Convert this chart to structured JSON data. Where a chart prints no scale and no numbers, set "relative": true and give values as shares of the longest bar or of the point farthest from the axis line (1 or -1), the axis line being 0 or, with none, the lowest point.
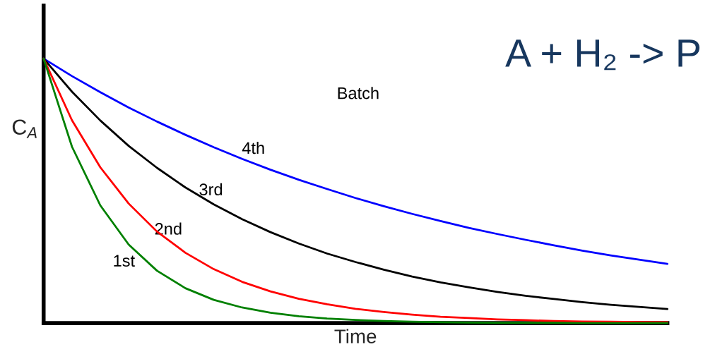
{
  "chart_data": {
    "type": "line",
    "relative": true,
    "xlabel": "Time",
    "ylabel": "C$_{A}$",
    "annotations": [
      "Batch",
      "A + H₂ -> P"
    ],
    "categories": [
      null,
      null,
      null,
      null,
      null,
      null,
      null,
      null,
      null,
      null,
      null,
      null,
      null,
      null,
      null,
      null,
      null,
      null,
      null,
      null,
      null,
      null,
      null
    ],
    "series": [
      {
        "name": "4th",
        "color": "#0000ff",
        "values": [
          1,
          0.934,
          0.873,
          0.815,
          0.762,
          0.712,
          0.665,
          0.621,
          0.58,
          0.542,
          0.507,
          0.473,
          0.442,
          0.413,
          0.386,
          0.36,
          0.337,
          0.315,
          0.294,
          0.274,
          0.256,
          0.24,
          0.224
        ]
      },
      {
        "name": "3rd",
        "color": "#000000",
        "values": [
          1,
          0.875,
          0.766,
          0.67,
          0.587,
          0.513,
          0.449,
          0.393,
          0.344,
          0.301,
          0.263,
          0.231,
          0.202,
          0.176,
          0.154,
          0.135,
          0.118,
          0.103,
          0.091,
          0.079,
          0.069,
          0.061,
          0.053
        ]
      },
      {
        "name": "2nd",
        "color": "#ff0000",
        "values": [
          1,
          0.767,
          0.589,
          0.452,
          0.346,
          0.266,
          0.204,
          0.156,
          0.12,
          0.092,
          0.071,
          0.054,
          0.042,
          0.032,
          0.024,
          0.019,
          0.014,
          0.011,
          0.008,
          0.006,
          0.005,
          0.004,
          0.003
        ]
      },
      {
        "name": "1st",
        "color": "#008000",
        "values": [
          1,
          0.667,
          0.445,
          0.297,
          0.198,
          0.132,
          0.088,
          0.059,
          0.039,
          0.026,
          0.017,
          0.012,
          0.008,
          0.005,
          0.003,
          0.002,
          0.001,
          0.001,
          0.001,
          0,
          0,
          0,
          0
        ]
      }
    ],
    "line_style": "solid",
    "marker": "none",
    "legend": false
  }
}
